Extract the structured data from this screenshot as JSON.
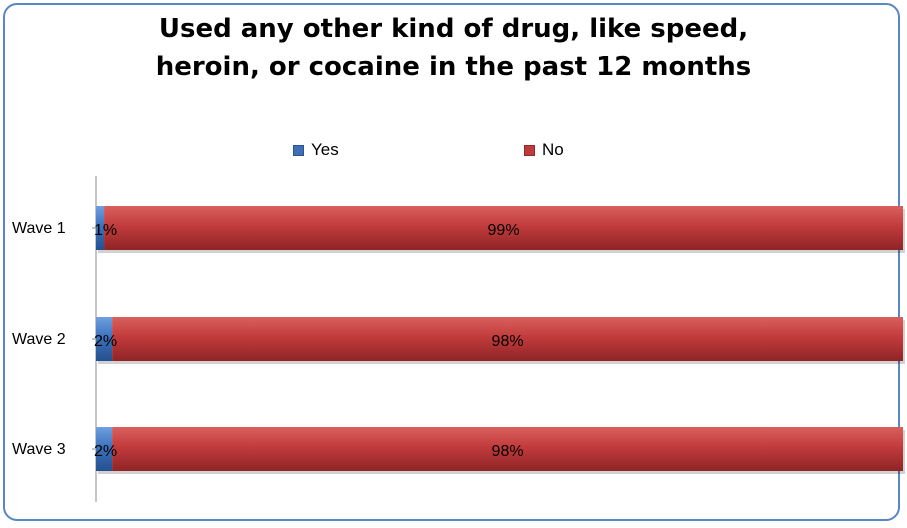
{
  "chart_data": {
    "type": "bar",
    "orientation": "horizontal",
    "stacked": "percent",
    "title": "Used any other kind of drug, like speed, heroin, or cocaine in the past 12 months",
    "categories": [
      "Wave 1",
      "Wave 2",
      "Wave 3"
    ],
    "series": [
      {
        "name": "Yes",
        "values": [
          1,
          2,
          2
        ],
        "labels": [
          "1%",
          "2%",
          "2%"
        ],
        "color": "#3c6fb8"
      },
      {
        "name": "No",
        "values": [
          99,
          98,
          98
        ],
        "labels": [
          "99%",
          "98%",
          "98%"
        ],
        "color": "#c0393b"
      }
    ],
    "xlim": [
      0,
      100
    ],
    "grid": false,
    "legend_position": "top"
  },
  "title_lines": [
    "Used any other kind of drug, like speed,",
    "heroin, or cocaine in the past 12 months"
  ]
}
